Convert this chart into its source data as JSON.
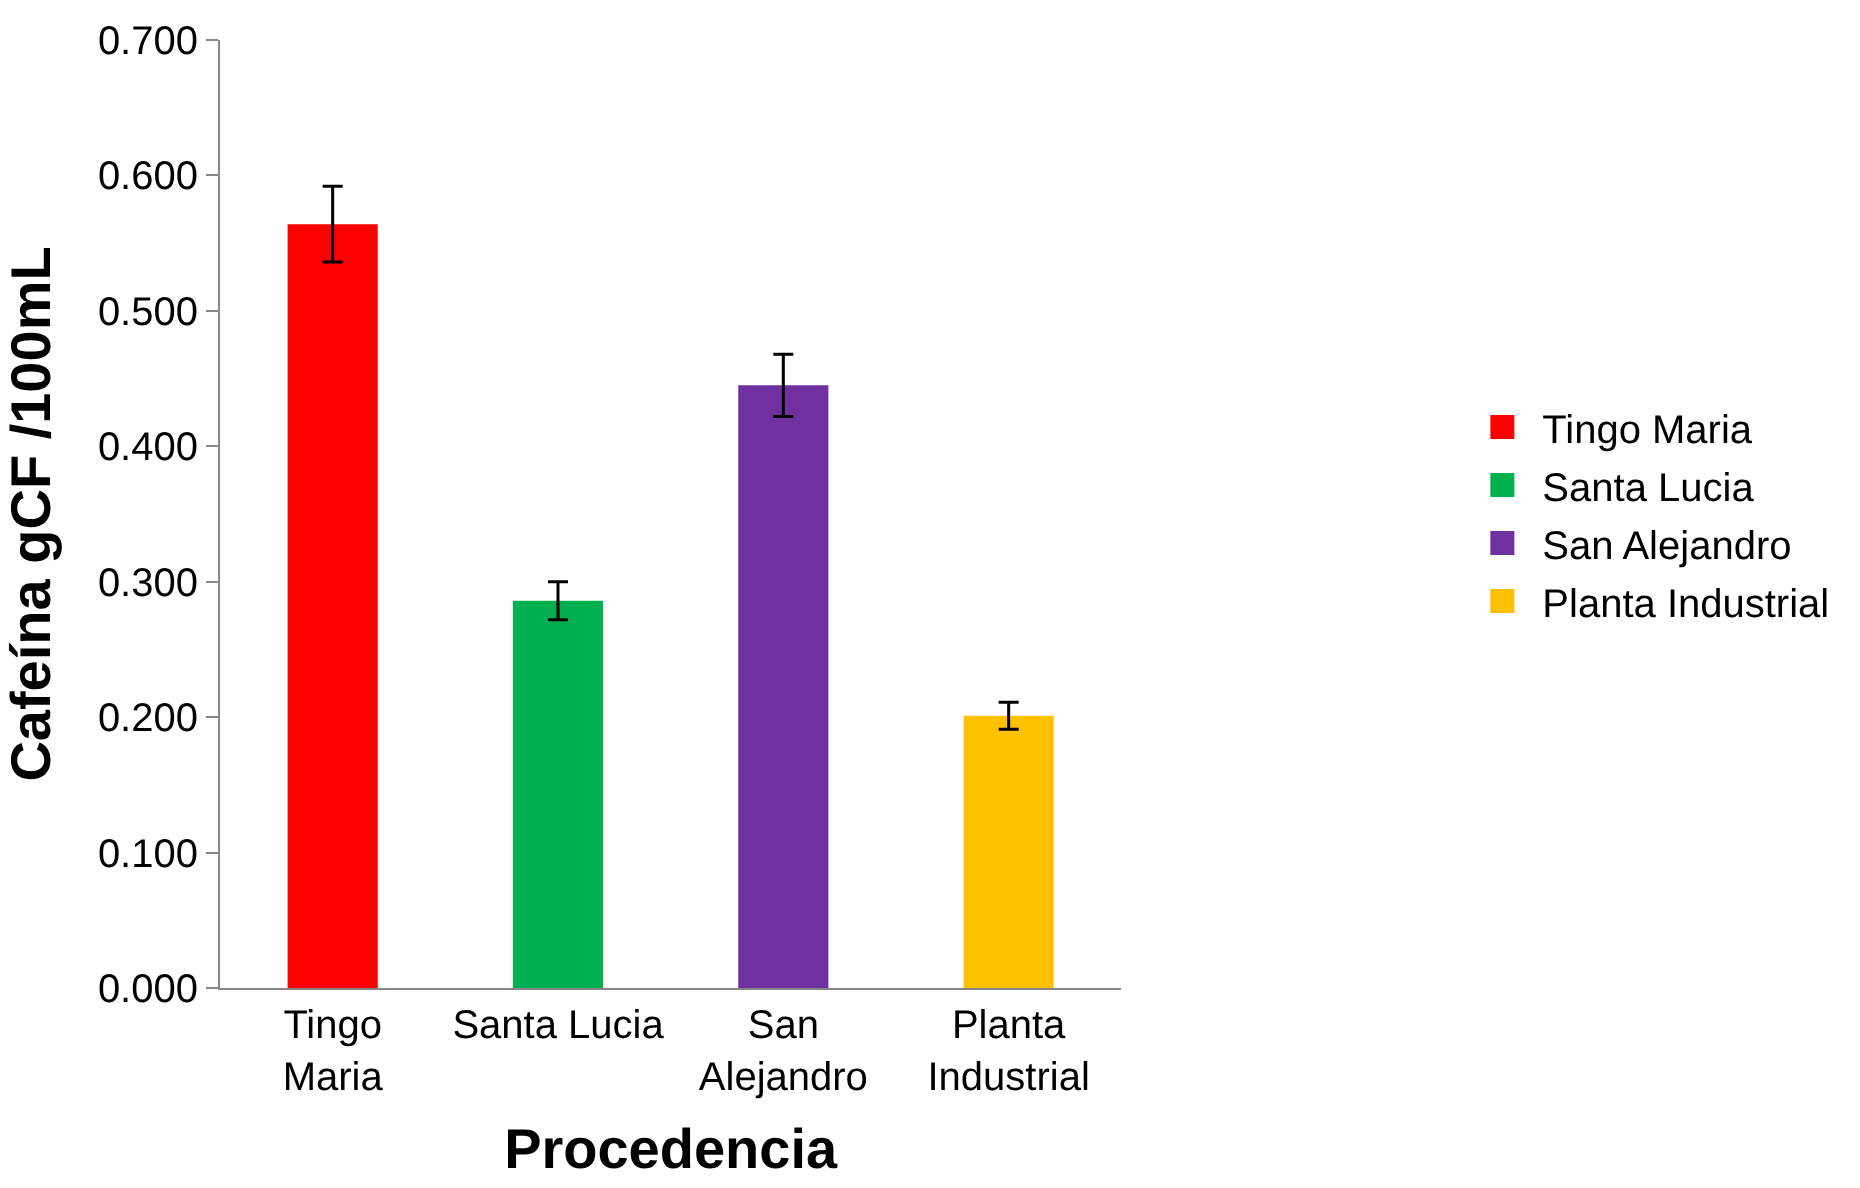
{
  "chart_data": {
    "type": "bar",
    "xlabel": "Procedencia",
    "ylabel": "Cafeína gCF /100mL",
    "categories": [
      "Tingo\nMaria",
      "Santa Lucia",
      "San\nAlejandro",
      "Planta\nIndustrial"
    ],
    "series": [
      {
        "name": "Tingo Maria",
        "color": "#ff0000",
        "values": [
          0.564,
          null,
          null,
          null
        ],
        "errors": [
          0.028,
          null,
          null,
          null
        ]
      },
      {
        "name": "Santa Lucia",
        "color": "#00b050",
        "values": [
          null,
          0.286,
          null,
          null
        ],
        "errors": [
          null,
          0.014,
          null,
          null
        ]
      },
      {
        "name": "San Alejandro",
        "color": "#7030a0",
        "values": [
          null,
          null,
          0.445,
          null
        ],
        "errors": [
          null,
          null,
          0.023,
          null
        ]
      },
      {
        "name": "Planta Industrial",
        "color": "#ffc000",
        "values": [
          null,
          null,
          null,
          0.201
        ],
        "errors": [
          null,
          null,
          null,
          0.01
        ]
      }
    ],
    "ylim": [
      0,
      0.7
    ],
    "yticks": [
      {
        "value": 0,
        "label": "0.000"
      },
      {
        "value": 0.1,
        "label": "0.100"
      },
      {
        "value": 0.2,
        "label": "0.200"
      },
      {
        "value": 0.3,
        "label": "0.300"
      },
      {
        "value": 0.4,
        "label": "0.400"
      },
      {
        "value": 0.5,
        "label": "0.500"
      },
      {
        "value": 0.6,
        "label": "0.600"
      },
      {
        "value": 0.7,
        "label": "0.700"
      }
    ],
    "legend": "right"
  }
}
